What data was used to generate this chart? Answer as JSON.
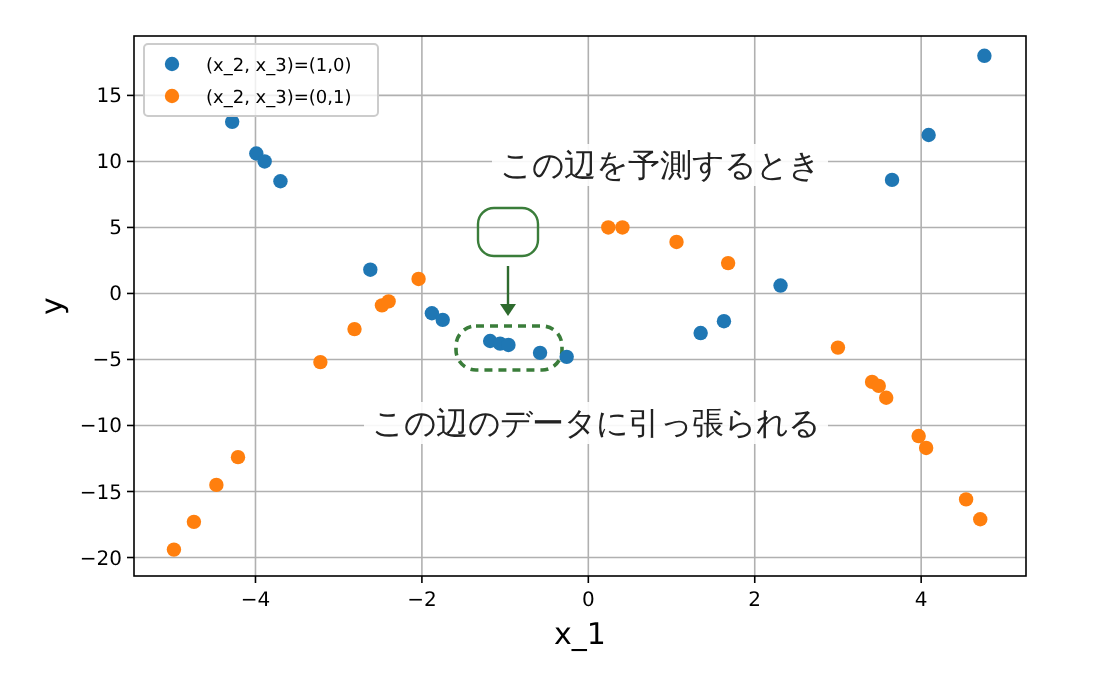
{
  "chart_data": {
    "type": "scatter",
    "xlabel": "x_1",
    "ylabel": "y",
    "xlim": [
      -5.46,
      5.26
    ],
    "ylim": [
      -21.4,
      19.5
    ],
    "xticks": [
      {
        "value": -4,
        "label": "−4"
      },
      {
        "value": -2,
        "label": "−2"
      },
      0,
      2,
      4
    ],
    "yticks": [
      {
        "value": -20,
        "label": "−20"
      },
      {
        "value": -15,
        "label": "−15"
      },
      {
        "value": -10,
        "label": "−10"
      },
      {
        "value": -5,
        "label": "−5"
      },
      0,
      5,
      10,
      15
    ],
    "grid": true,
    "legend": "top left",
    "marker": "circle",
    "annotations": [
      "この辺を予測するとき",
      "この辺のデータに引っ張られる"
    ],
    "series": [
      {
        "name": "(x_2, x_3)=(1,0)",
        "color": "#1f77b4",
        "x": [
          -4.28,
          -3.99,
          -3.89,
          -3.7,
          -2.62,
          -1.88,
          -1.75,
          -1.18,
          -1.06,
          -0.96,
          -0.58,
          -0.26,
          1.35,
          1.63,
          2.31,
          3.65,
          4.09,
          4.76
        ],
        "values": [
          13.0,
          10.6,
          10.0,
          8.5,
          1.8,
          -1.5,
          -2.0,
          -3.6,
          -3.8,
          -3.9,
          -4.5,
          -4.8,
          -3.0,
          -2.1,
          0.6,
          8.6,
          12.0,
          18.0
        ]
      },
      {
        "name": "(x_2, x_3)=(0,1)",
        "color": "#ff7f0e",
        "x": [
          -4.98,
          -4.74,
          -4.47,
          -4.21,
          -3.22,
          -2.81,
          -2.48,
          -2.4,
          -2.04,
          0.24,
          0.41,
          1.06,
          1.68,
          3.0,
          3.41,
          3.49,
          3.58,
          3.97,
          4.06,
          4.54,
          4.71
        ],
        "values": [
          -19.4,
          -17.3,
          -14.5,
          -12.4,
          -5.2,
          -2.7,
          -0.9,
          -0.6,
          1.1,
          5.0,
          5.0,
          3.9,
          2.3,
          -4.1,
          -6.7,
          -7.0,
          -7.9,
          -10.8,
          -11.7,
          -15.6,
          -17.1
        ]
      }
    ]
  }
}
